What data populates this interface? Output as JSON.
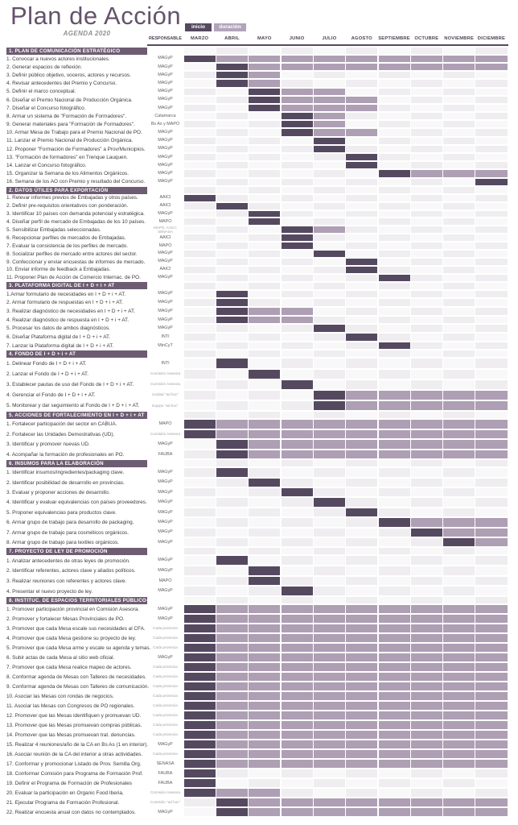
{
  "page": {
    "title": "Plan de Acción",
    "subtitle": "AGENDA 2020"
  },
  "legend": {
    "inicio_label": "inicio",
    "duracion_label": "duración"
  },
  "table_header": {
    "responsable": "RESPONSABLE"
  },
  "colors": {
    "inicio_bar": "#554960",
    "duracion_bar": "#ae9fb4",
    "section_header_bg": "#6d5c72",
    "title_text": "#64536b",
    "month_text": "#4e4257"
  },
  "chart_data": {
    "type": "bar",
    "subtype": "gantt",
    "title": "Plan de Acción",
    "subtitle": "AGENDA 2020",
    "legend": [
      "inicio",
      "duración"
    ],
    "months": [
      "MARZO",
      "ABRIL",
      "MAYO",
      "JUNIO",
      "JULIO",
      "AGOSTO",
      "SEPTIEMBRE",
      "OCTUBRE",
      "NOVIEMBRE",
      "DICIEMBRE"
    ],
    "sections": [
      {
        "title": "1. PLAN DE COMUNICACIÓN ESTRATÉGICO",
        "tasks": [
          {
            "label": "1. Convocar a nuevos actores institucionales.",
            "resp": "MAGyP",
            "inicio": "MARZO",
            "dur_desde": "ABRIL",
            "dur_hasta": "DICIEMBRE"
          },
          {
            "label": "2. Generar espacios de reflexión.",
            "resp": "MAGyP",
            "inicio": "ABRIL",
            "dur_desde": "MAYO",
            "dur_hasta": "DICIEMBRE"
          },
          {
            "label": "3. Definir público objetivo, voceros, actores y recursos.",
            "resp": "MAGyP",
            "inicio": "ABRIL",
            "dur_desde": "MAYO",
            "dur_hasta": "MAYO"
          },
          {
            "label": "4. Revisar antecedentes del Premio y Concurso.",
            "resp": "MAGyP",
            "inicio": "ABRIL",
            "dur_desde": "MAYO",
            "dur_hasta": "MAYO"
          },
          {
            "label": "5. Definir el marco conceptual.",
            "resp": "MAGyP",
            "inicio": "MAYO",
            "dur_desde": "JUNIO",
            "dur_hasta": "JULIO"
          },
          {
            "label": "6. Diseñar el Premio Nacional de Producción Orgánica.",
            "resp": "MAGyP",
            "inicio": "MAYO",
            "dur_desde": "JUNIO",
            "dur_hasta": "AGOSTO"
          },
          {
            "label": "7. Diseñar el Concurso fotográfico.",
            "resp": "MAGyP",
            "inicio": "MAYO",
            "dur_desde": "JUNIO",
            "dur_hasta": "AGOSTO"
          },
          {
            "label": "8. Armar un sistema de \"Formación de Formadores\".",
            "resp": "Catamarca",
            "inicio": "JUNIO",
            "dur_desde": "JULIO",
            "dur_hasta": "JULIO"
          },
          {
            "label": "9. Generar materiales para \"Formación de Formadores\".",
            "resp": "Bs As y MAPO",
            "inicio": "JUNIO",
            "dur_desde": "JULIO",
            "dur_hasta": "JULIO"
          },
          {
            "label": "10. Armar Mesa de Trabajo para el Premio Nacional de PO.",
            "resp": "MAGyP",
            "inicio": "JUNIO",
            "dur_desde": "JULIO",
            "dur_hasta": "AGOSTO"
          },
          {
            "label": "11. Lanzar el Premio Nacional de Producción Orgánica.",
            "resp": "MAGyP",
            "inicio": "JULIO",
            "dur_desde": null,
            "dur_hasta": null
          },
          {
            "label": "12. Proponer \"Formación de Formadores\" a Prov/Municipios.",
            "resp": "MAGyP",
            "inicio": "JULIO",
            "dur_desde": null,
            "dur_hasta": null
          },
          {
            "label": "13. \"Formación de formadores\" en Trenque Lauquen.",
            "resp": "MAGyP",
            "inicio": "AGOSTO",
            "dur_desde": null,
            "dur_hasta": null
          },
          {
            "label": "14. Lanzar el Concurso fotográfico.",
            "resp": "MAGyP",
            "inicio": "AGOSTO",
            "dur_desde": null,
            "dur_hasta": null
          },
          {
            "label": "15. Organizar la Semana de los Alimentos Orgánicos.",
            "resp": "MAGyP",
            "inicio": "SEPTIEMBRE",
            "dur_desde": "OCTUBRE",
            "dur_hasta": "DICIEMBRE"
          },
          {
            "label": "16. Semana de los AO con Premio y resultado del Concurso.",
            "resp": "MAGyP",
            "inicio": "DICIEMBRE",
            "dur_desde": null,
            "dur_hasta": null
          }
        ]
      },
      {
        "title": "2. DATOS ÚTILES PARA EXPORTACIÓN",
        "tasks": [
          {
            "label": "1. Relevar informes previos de Embajadas y otros países.",
            "resp": "AAICI",
            "inicio": "MARZO",
            "dur_desde": null,
            "dur_hasta": null
          },
          {
            "label": "2. Definir pre-requisitos orientativos con ponderación.",
            "resp": "AAICI",
            "inicio": "ABRIL",
            "dur_desde": null,
            "dur_hasta": null
          },
          {
            "label": "3. Identificar 10 países con demanda potencial y estratégica.",
            "resp": "MAGyP",
            "inicio": "MAYO",
            "dur_desde": null,
            "dur_hasta": null
          },
          {
            "label": "4. Diseñar perfil de mercado de Embajadas de los 10 países.",
            "resp": "MAPO",
            "inicio": "MAYO",
            "dur_desde": null,
            "dur_hasta": null
          },
          {
            "label": "5. Sensibilizar Embajadas seleccionadas.",
            "resp": "MAPO, AAICI, SENASA",
            "inicio": "JUNIO",
            "dur_desde": "JULIO",
            "dur_hasta": "JULIO"
          },
          {
            "label": "6. Recepcionar perfiles de mercados de Embajadas.",
            "resp": "AAICI",
            "inicio": "JUNIO",
            "dur_desde": null,
            "dur_hasta": null
          },
          {
            "label": "7. Evaluar la consistencia de los perfiles de mercado.",
            "resp": "MAPO",
            "inicio": "JUNIO",
            "dur_desde": null,
            "dur_hasta": null
          },
          {
            "label": "8. Socializar perfiles de mercado entre actores del sector.",
            "resp": "MAGyP",
            "inicio": "JULIO",
            "dur_desde": null,
            "dur_hasta": null
          },
          {
            "label": "9. Confeccionar y enviar encuestas de informes de mercado.",
            "resp": "MAGyP",
            "inicio": "AGOSTO",
            "dur_desde": null,
            "dur_hasta": null
          },
          {
            "label": "10. Enviar informe de feedback a Embajadas.",
            "resp": "AAICI",
            "inicio": "AGOSTO",
            "dur_desde": null,
            "dur_hasta": null
          },
          {
            "label": "11. Proponer Plan de Acción de Comercio Internac. de PO.",
            "resp": "MAGyP",
            "inicio": "SEPTIEMBRE",
            "dur_desde": null,
            "dur_hasta": null
          }
        ]
      },
      {
        "title": "3. PLATAFORMA DIGITAL DE I + D + i + AT",
        "tasks": [
          {
            "label": "1.Armar formulario de necesidades en I + D + i + AT.",
            "resp": "MAGyP",
            "inicio": "ABRIL",
            "dur_desde": null,
            "dur_hasta": null
          },
          {
            "label": "2. Armar formulario de respuestas en I + D + i + AT.",
            "resp": "MAGyP",
            "inicio": "ABRIL",
            "dur_desde": null,
            "dur_hasta": null
          },
          {
            "label": "3. Realizar diagnóstico de necesidades en I + D + i + AT.",
            "resp": "MAGyP",
            "inicio": "ABRIL",
            "dur_desde": "MAYO",
            "dur_hasta": "JUNIO"
          },
          {
            "label": "4. Realizar diagnóstico de respuesta en I + D + i + AT.",
            "resp": "MAGyP",
            "inicio": "ABRIL",
            "dur_desde": "MAYO",
            "dur_hasta": "JUNIO"
          },
          {
            "label": "5. Procesar los datos de ambos diagnósticos.",
            "resp": "MAGyP",
            "inicio": "JULIO",
            "dur_desde": null,
            "dur_hasta": null
          },
          {
            "label": "6. Diseñar Plataforma digital de I + D + i + AT.",
            "resp": "INTI",
            "inicio": "AGOSTO",
            "dur_desde": null,
            "dur_hasta": null
          },
          {
            "label": "7. Lanzar la Plataforma digital de I + D + i + AT.",
            "resp": "MinCyT",
            "inicio": "SEPTIEMBRE",
            "dur_desde": null,
            "dur_hasta": null
          }
        ]
      },
      {
        "title": "4. FONDO DE I + D + i + AT",
        "tasks": [
          {
            "label": "1. Delinear Fondo de I + D + i + AT.",
            "resp": "INTI",
            "inicio": "ABRIL",
            "dur_desde": null,
            "dur_hasta": null
          },
          {
            "label": "2. Lanzar el Fondo de I + D + i + AT.",
            "resp": "Comisión Asesora",
            "inicio": "MAYO",
            "dur_desde": null,
            "dur_hasta": null
          },
          {
            "label": "3. Establecer pautas de uso del Fondo de I + D + i + AT.",
            "resp": "Comisión Asesora",
            "inicio": "JUNIO",
            "dur_desde": null,
            "dur_hasta": null
          },
          {
            "label": "4. Gerenciar el Fondo de I + D + i + AT.",
            "resp": "Unidad \"ad hoc\"",
            "inicio": "JULIO",
            "dur_desde": "AGOSTO",
            "dur_hasta": "DICIEMBRE"
          },
          {
            "label": "5. Monitorear y dar seguimiento al Fondo de I + D + i + AT.",
            "resp": "Equipo \"ad hoc\"",
            "inicio": "JULIO",
            "dur_desde": "AGOSTO",
            "dur_hasta": "DICIEMBRE"
          }
        ]
      },
      {
        "title": "5. ACCIONES DE FORTALECIMIENTO EN I + D + i + AT",
        "tasks": [
          {
            "label": "1. Fortalecer participación del sector en CABUA.",
            "resp": "MAPO",
            "inicio": "MARZO",
            "dur_desde": "ABRIL",
            "dur_hasta": "DICIEMBRE"
          },
          {
            "label": "2. Fortalecer las Unidades Demostrativas (UD).",
            "resp": "Comisión Asesora",
            "inicio": "MARZO",
            "dur_desde": "ABRIL",
            "dur_hasta": "DICIEMBRE"
          },
          {
            "label": "3. Identificar y promover nuevas UD.",
            "resp": "MAGyP",
            "inicio": "ABRIL",
            "dur_desde": "MAYO",
            "dur_hasta": "DICIEMBRE"
          },
          {
            "label": "4. Acompañar la formación de profesionales en PO.",
            "resp": "FAUBA",
            "inicio": "ABRIL",
            "dur_desde": "MAYO",
            "dur_hasta": "DICIEMBRE"
          }
        ]
      },
      {
        "title": "6. INSUMOS PARA LA ELABORACIÓN",
        "tasks": [
          {
            "label": "1. Identificar insumos/ingredientes/packaging clave.",
            "resp": "MAGyP",
            "inicio": "ABRIL",
            "dur_desde": null,
            "dur_hasta": null
          },
          {
            "label": "2. Identificar posibilidad de desarrollo en provincias.",
            "resp": "MAGyP",
            "inicio": "MAYO",
            "dur_desde": null,
            "dur_hasta": null
          },
          {
            "label": "3. Evaluar y proponer acciones de desarrollo.",
            "resp": "MAGyP",
            "inicio": "JUNIO",
            "dur_desde": null,
            "dur_hasta": null
          },
          {
            "label": "4. Identificar y evaluar equivalencias con países proveedores.",
            "resp": "MAGyP",
            "inicio": "JULIO",
            "dur_desde": null,
            "dur_hasta": null
          },
          {
            "label": "5. Proponer equivalencias para productos clave.",
            "resp": "MAGyP",
            "inicio": "AGOSTO",
            "dur_desde": null,
            "dur_hasta": null
          },
          {
            "label": "6. Armar grupo de trabajo para desarrollo de packaging.",
            "resp": "MAGyP",
            "inicio": "SEPTIEMBRE",
            "dur_desde": "OCTUBRE",
            "dur_hasta": "DICIEMBRE"
          },
          {
            "label": "7. Armar grupo de trabajo para cosméticos orgánicos.",
            "resp": "MAGyP",
            "inicio": "OCTUBRE",
            "dur_desde": "NOVIEMBRE",
            "dur_hasta": "DICIEMBRE"
          },
          {
            "label": "8. Armar grupo de trabajo para textiles orgánicos.",
            "resp": "MAGyP",
            "inicio": "NOVIEMBRE",
            "dur_desde": "DICIEMBRE",
            "dur_hasta": "DICIEMBRE"
          }
        ]
      },
      {
        "title": "7. PROYECTO DE LEY DE PROMOCIÓN",
        "tasks": [
          {
            "label": "1. Analizar antecedentes de otras leyes de promoción.",
            "resp": "MAGyP",
            "inicio": "ABRIL",
            "dur_desde": null,
            "dur_hasta": null
          },
          {
            "label": "2. Identificar referentes, actores clave y aliados políticos.",
            "resp": "MAGyP",
            "inicio": "MAYO",
            "dur_desde": null,
            "dur_hasta": null
          },
          {
            "label": "3. Realizar reuniones con referentes y actores clave.",
            "resp": "MAPO",
            "inicio": "MAYO",
            "dur_desde": null,
            "dur_hasta": null
          },
          {
            "label": "4. Presentar el nuevo proyecto de ley.",
            "resp": "MAGyP",
            "inicio": "JUNIO",
            "dur_desde": null,
            "dur_hasta": null
          }
        ]
      },
      {
        "title": "8. INSTITUC. DE ESPACIOS TERRITORIALES PÚBLICO-PRIVADOS",
        "tasks": [
          {
            "label": "1. Promover participación provincial en Comisión Asesora.",
            "resp": "MAGyP",
            "inicio": "MARZO",
            "dur_desde": "ABRIL",
            "dur_hasta": "DICIEMBRE"
          },
          {
            "label": "2. Promover y fortalecer Mesas Provinciales de PO.",
            "resp": "MAGyP",
            "inicio": "MARZO",
            "dur_desde": "ABRIL",
            "dur_hasta": "DICIEMBRE"
          },
          {
            "label": "3. Promover que cada Mesa escale sus necesidades al CFA.",
            "resp": "Cada provincia",
            "inicio": "MARZO",
            "dur_desde": "ABRIL",
            "dur_hasta": "DICIEMBRE"
          },
          {
            "label": "4. Promover que cada Mesa gestione su proyecto de ley.",
            "resp": "Cada provincia",
            "inicio": "MARZO",
            "dur_desde": "ABRIL",
            "dur_hasta": "DICIEMBRE"
          },
          {
            "label": "5. Promover que cada Mesa arme y escale su agenda y temas.",
            "resp": "Cada provincia",
            "inicio": "MARZO",
            "dur_desde": "ABRIL",
            "dur_hasta": "DICIEMBRE"
          },
          {
            "label": "6. Subir actas de cada  Mesa al sitio web oficial.",
            "resp": "MAGyP",
            "inicio": "MARZO",
            "dur_desde": "ABRIL",
            "dur_hasta": "DICIEMBRE"
          },
          {
            "label": "7. Promover que cada Mesa realice mapeo de actores.",
            "resp": "Cada provincia",
            "inicio": "MARZO",
            "dur_desde": "ABRIL",
            "dur_hasta": "DICIEMBRE"
          },
          {
            "label": "8. Conformar agenda de Mesas con Talleres de necesidades.",
            "resp": "Cada provincia",
            "inicio": "MARZO",
            "dur_desde": "ABRIL",
            "dur_hasta": "DICIEMBRE"
          },
          {
            "label": "9. Conformar agenda de Mesas con Talleres de comunicación.",
            "resp": "Cada provincia",
            "inicio": "MARZO",
            "dur_desde": "ABRIL",
            "dur_hasta": "DICIEMBRE"
          },
          {
            "label": "10. Asociar las Mesas con rondas de negocios.",
            "resp": "Cada provincia",
            "inicio": "MARZO",
            "dur_desde": "ABRIL",
            "dur_hasta": "DICIEMBRE"
          },
          {
            "label": "11. Asociar las Mesas con Congresos de PO regionales.",
            "resp": "Cada provincia",
            "inicio": "MARZO",
            "dur_desde": "ABRIL",
            "dur_hasta": "DICIEMBRE"
          },
          {
            "label": "12. Promover que las Mesas identifiquen y promuevan UD.",
            "resp": "Cada provincia",
            "inicio": "MARZO",
            "dur_desde": "ABRIL",
            "dur_hasta": "DICIEMBRE"
          },
          {
            "label": "13. Promover que las Mesas promuevan compras públicas.",
            "resp": "Cada provincia",
            "inicio": "MARZO",
            "dur_desde": "ABRIL",
            "dur_hasta": "DICIEMBRE"
          },
          {
            "label": "14. Promover que las Mesas promuevan trat. denuncias.",
            "resp": "Cada provincia",
            "inicio": "MARZO",
            "dur_desde": "ABRIL",
            "dur_hasta": "DICIEMBRE"
          },
          {
            "label": "15. Realizar 4 reuniones/año de la CA en Bs As (1 en interior).",
            "resp": "MAGyP",
            "inicio": "MARZO",
            "dur_desde": "ABRIL",
            "dur_hasta": "DICIEMBRE"
          },
          {
            "label": "16. Asociar reunión de la CA del interior a otras actividades.",
            "resp": "Cada provincia",
            "inicio": "MARZO",
            "dur_desde": "ABRIL",
            "dur_hasta": "DICIEMBRE"
          },
          {
            "label": "17. Conformar y promocionar Listado de Prov. Semilla Org.",
            "resp": "SENASA",
            "inicio": "MARZO",
            "dur_desde": "ABRIL",
            "dur_hasta": "DICIEMBRE"
          },
          {
            "label": "18. Conformar Comisión para Programa de Formación Prof.",
            "resp": "FAUBA",
            "inicio": "MARZO",
            "dur_desde": null,
            "dur_hasta": null
          },
          {
            "label": "19. Definir el Programa de Formación de Profesionales",
            "resp": "FAUBA",
            "inicio": "MARZO",
            "dur_desde": null,
            "dur_hasta": null
          },
          {
            "label": "20. Evaluar la participación en Organic Food Iberia,",
            "resp": "Comisión Asesora",
            "inicio": "MARZO",
            "dur_desde": "ABRIL",
            "dur_hasta": "MAYO"
          },
          {
            "label": "21. Ejecutar Programa de Formación Profesional.",
            "resp": "Comisión \"ad hoc\"",
            "inicio": "ABRIL",
            "dur_desde": "MAYO",
            "dur_hasta": "DICIEMBRE"
          },
          {
            "label": "22. Realizar encuesta anual con datos no contemplados.",
            "resp": "MAGyP",
            "inicio": "ABRIL",
            "dur_desde": "MAYO",
            "dur_hasta": "DICIEMBRE"
          }
        ]
      }
    ]
  }
}
